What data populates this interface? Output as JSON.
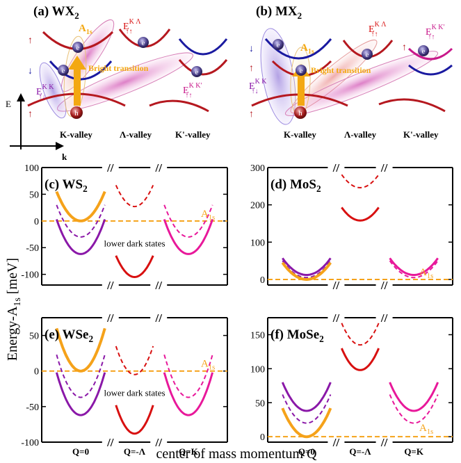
{
  "colors": {
    "wx_cond_k": "#b5181f",
    "wx_valence": "#b5181f",
    "wx_cond_lambda": "#b5181f",
    "wx_cond_k2": "#1a1aa0",
    "mx_cond_k_top": "#1a1aa0",
    "mx_cond_k_low": "#b5181f",
    "bright_arrow": "#f3a812",
    "a1s_text": "#f3a812",
    "purple": "#8a18a8",
    "red": "#d81010",
    "pink": "#e8189a",
    "orange": "#f5a21a",
    "dashed_orange": "#f5a21a"
  },
  "top": {
    "wx": {
      "title": "(a) WX",
      "title_sub": "2",
      "a1s": "A",
      "a1s_sub": "1s",
      "bright": "Bright transition",
      "e_lam": "E",
      "e_lam_sup": "K Λ",
      "e_lam_sub": "↑↑",
      "e_kk": "E",
      "e_kk_sup": "K K",
      "e_kk_sub": "↑↓",
      "e_kk2": "E",
      "e_kk2_sup": "K K'",
      "e_kk2_sub": "↑↑",
      "valleys": [
        "K-valley",
        "Λ-valley",
        "K'-valley"
      ],
      "electron": "e",
      "hole": "h"
    },
    "mx": {
      "title": "(b) MX",
      "title_sub": "2",
      "a1s": "A",
      "a1s_sub": "1s",
      "bright": "Bright transition",
      "e_lam": "E",
      "e_lam_sup": "K Λ",
      "e_lam_sub": "↑↑",
      "e_kk": "E",
      "e_kk_sup": "K K",
      "e_kk_sub": "↑↓",
      "e_kk2": "E",
      "e_kk2_sup": "K K'",
      "e_kk2_sub": "↑↑",
      "valleys": [
        "K-valley",
        "Λ-valley",
        "K'-valley"
      ],
      "electron": "e",
      "hole": "h"
    },
    "axis": {
      "e": "E",
      "k": "k"
    }
  },
  "ylabel_main": "Energy-A",
  "ylabel_sub": "1s",
  "ylabel_unit": " [meV]",
  "xlabel_main": "center of mass momentum Q",
  "chart_data": [
    {
      "id": "c",
      "type": "line",
      "title": "(c) WS",
      "title_sub": "2",
      "ylim": [
        -120,
        100
      ],
      "yticks": [
        -100,
        -50,
        0,
        50,
        100
      ],
      "annotation": "lower dark states",
      "a1s_label": "A",
      "a1s_sub": "1s",
      "series": [
        {
          "group": "Q=0",
          "role": "bright",
          "color": "#f5a21a",
          "dash": false,
          "min": 0,
          "curv": 55
        },
        {
          "group": "Q=0",
          "role": "dark",
          "color": "#8a18a8",
          "dash": false,
          "min": -62,
          "curv": 65
        },
        {
          "group": "Q=0",
          "role": "dark",
          "color": "#8a18a8",
          "dash": true,
          "min": -30,
          "curv": 60
        },
        {
          "group": "Q=-Λ",
          "role": "dark",
          "color": "#d81010",
          "dash": false,
          "min": -105,
          "curv": 40
        },
        {
          "group": "Q=-Λ",
          "role": "dark",
          "color": "#d81010",
          "dash": true,
          "min": 27,
          "curv": 40
        },
        {
          "group": "Q=K",
          "role": "dark",
          "color": "#e8189a",
          "dash": false,
          "min": -62,
          "curv": 65
        },
        {
          "group": "Q=K",
          "role": "dark",
          "color": "#e8189a",
          "dash": true,
          "min": -30,
          "curv": 60
        }
      ]
    },
    {
      "id": "d",
      "type": "line",
      "title": "(d) MoS",
      "title_sub": "2",
      "ylim": [
        -15,
        300
      ],
      "yticks": [
        0,
        100,
        200,
        300
      ],
      "a1s_label": "A",
      "a1s_sub": "1s",
      "series": [
        {
          "group": "Q=0",
          "role": "dark",
          "color": "#8a18a8",
          "dash": false,
          "min": 12,
          "curv": 45
        },
        {
          "group": "Q=0",
          "role": "dark",
          "color": "#8a18a8",
          "dash": true,
          "min": 5,
          "curv": 45
        },
        {
          "group": "Q=0",
          "role": "bright",
          "color": "#f5a21a",
          "dash": false,
          "min": 0,
          "curv": 45
        },
        {
          "group": "Q=-Λ",
          "role": "dark",
          "color": "#d81010",
          "dash": false,
          "min": 158,
          "curv": 35
        },
        {
          "group": "Q=-Λ",
          "role": "dark",
          "color": "#d81010",
          "dash": true,
          "min": 246,
          "curv": 35
        },
        {
          "group": "Q=K",
          "role": "dark",
          "color": "#e8189a",
          "dash": false,
          "min": 12,
          "curv": 45
        },
        {
          "group": "Q=K",
          "role": "dark",
          "color": "#e8189a",
          "dash": true,
          "min": 5,
          "curv": 45
        }
      ]
    },
    {
      "id": "e",
      "type": "line",
      "title": "(e) WSe",
      "title_sub": "2",
      "ylim": [
        -100,
        75
      ],
      "yticks": [
        -100,
        -50,
        0,
        50
      ],
      "annotation": "lower dark states",
      "a1s_label": "A",
      "a1s_sub": "1s",
      "series": [
        {
          "group": "Q=0",
          "role": "bright",
          "color": "#f5a21a",
          "dash": false,
          "min": 0,
          "curv": 60
        },
        {
          "group": "Q=0",
          "role": "dark",
          "color": "#8a18a8",
          "dash": false,
          "min": -62,
          "curv": 60
        },
        {
          "group": "Q=0",
          "role": "dark",
          "color": "#8a18a8",
          "dash": true,
          "min": -37,
          "curv": 60
        },
        {
          "group": "Q=-Λ",
          "role": "dark",
          "color": "#d81010",
          "dash": false,
          "min": -88,
          "curv": 40
        },
        {
          "group": "Q=-Λ",
          "role": "dark",
          "color": "#d81010",
          "dash": true,
          "min": -5,
          "curv": 40
        },
        {
          "group": "Q=K",
          "role": "dark",
          "color": "#e8189a",
          "dash": false,
          "min": -62,
          "curv": 60
        },
        {
          "group": "Q=K",
          "role": "dark",
          "color": "#e8189a",
          "dash": true,
          "min": -37,
          "curv": 60
        }
      ]
    },
    {
      "id": "f",
      "type": "line",
      "title": "(f) MoSe",
      "title_sub": "2",
      "ylim": [
        -8,
        175
      ],
      "yticks": [
        0,
        50,
        100,
        150
      ],
      "a1s_label": "A",
      "a1s_sub": "1s",
      "series": [
        {
          "group": "Q=0",
          "role": "dark",
          "color": "#8a18a8",
          "dash": false,
          "min": 38,
          "curv": 42
        },
        {
          "group": "Q=0",
          "role": "dark",
          "color": "#8a18a8",
          "dash": true,
          "min": 20,
          "curv": 42
        },
        {
          "group": "Q=0",
          "role": "bright",
          "color": "#f5a21a",
          "dash": false,
          "min": 0,
          "curv": 42
        },
        {
          "group": "Q=-Λ",
          "role": "dark",
          "color": "#d81010",
          "dash": false,
          "min": 98,
          "curv": 32
        },
        {
          "group": "Q=-Λ",
          "role": "dark",
          "color": "#d81010",
          "dash": true,
          "min": 135,
          "curv": 32
        },
        {
          "group": "Q=K",
          "role": "dark",
          "color": "#e8189a",
          "dash": false,
          "min": 38,
          "curv": 42
        },
        {
          "group": "Q=K",
          "role": "dark",
          "color": "#e8189a",
          "dash": true,
          "min": 20,
          "curv": 42
        }
      ]
    }
  ],
  "xticks": [
    "Q=0",
    "Q=-Λ",
    "Q=K"
  ],
  "break_mark": "//"
}
